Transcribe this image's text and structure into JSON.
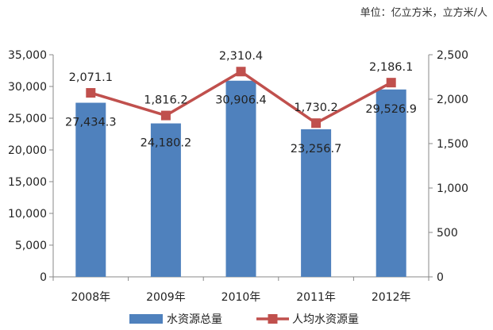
{
  "chart_data": {
    "type": "bar",
    "unit_note": "单位：亿立方米，立方米/人",
    "categories": [
      "2008年",
      "2009年",
      "2010年",
      "2011年",
      "2012年"
    ],
    "series": [
      {
        "name": "水资源总量",
        "type": "bar",
        "axis": "left",
        "color": "#4F81BD",
        "values": [
          27434.3,
          24180.2,
          30906.4,
          23256.7,
          29526.9
        ],
        "labels": [
          "27,434.3",
          "24,180.2",
          "30,906.4",
          "23,256.7",
          "29,526.9"
        ]
      },
      {
        "name": "人均水资源量",
        "type": "line",
        "axis": "right",
        "color": "#C0504D",
        "values": [
          2071.1,
          1816.2,
          2310.4,
          1730.2,
          2186.1
        ],
        "labels": [
          "2,071.1",
          "1,816.2",
          "2,310.4",
          "1,730.2",
          "2,186.1"
        ]
      }
    ],
    "y_left": {
      "min": 0,
      "max": 35000,
      "step": 5000,
      "tick_labels": [
        "0",
        "5,000",
        "10,000",
        "15,000",
        "20,000",
        "25,000",
        "30,000",
        "35,000"
      ]
    },
    "y_right": {
      "min": 0,
      "max": 2500,
      "step": 500,
      "tick_labels": [
        "0",
        "500",
        "1,000",
        "1,500",
        "2,000",
        "2,500"
      ]
    },
    "grid": false,
    "legend": "bottom"
  }
}
